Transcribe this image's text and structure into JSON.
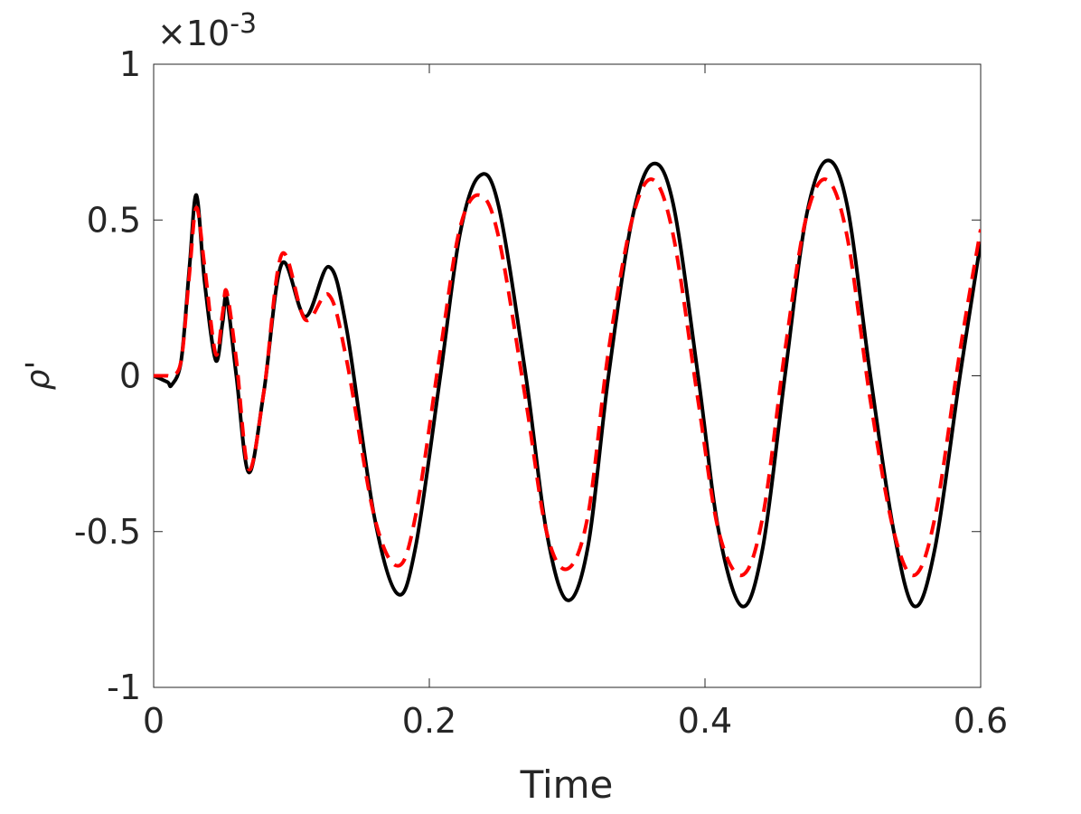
{
  "chart_data": {
    "type": "line",
    "ylabel": "ρ'",
    "xlabel": "Time",
    "y_multiplier": {
      "base": "×10",
      "exponent": "-3"
    },
    "x": [
      0,
      0.01,
      0.013,
      0.02,
      0.026,
      0.031,
      0.037,
      0.045,
      0.05,
      0.053,
      0.06,
      0.069,
      0.08,
      0.093,
      0.11,
      0.127,
      0.14,
      0.16,
      0.177,
      0.19,
      0.208,
      0.222,
      0.236,
      0.25,
      0.27,
      0.285,
      0.3,
      0.315,
      0.33,
      0.347,
      0.362,
      0.377,
      0.395,
      0.41,
      0.427,
      0.442,
      0.458,
      0.473,
      0.488,
      0.503,
      0.52,
      0.537,
      0.552,
      0.567,
      0.585,
      0.6
    ],
    "series": [
      {
        "color": "#000000",
        "style": "solid",
        "values": [
          0,
          -0.02,
          -0.03,
          0.05,
          0.35,
          0.58,
          0.3,
          0.05,
          0.17,
          0.25,
          0.0,
          -0.31,
          -0.05,
          0.36,
          0.19,
          0.35,
          0.15,
          -0.45,
          -0.7,
          -0.55,
          0.0,
          0.45,
          0.64,
          0.55,
          0.0,
          -0.5,
          -0.72,
          -0.55,
          0.0,
          0.5,
          0.68,
          0.55,
          0.0,
          -0.5,
          -0.74,
          -0.55,
          0.0,
          0.5,
          0.69,
          0.55,
          0.0,
          -0.5,
          -0.74,
          -0.55,
          0.0,
          0.43
        ]
      },
      {
        "color": "#ff0000",
        "style": "dashed",
        "values": [
          0,
          0,
          0.0,
          0.05,
          0.33,
          0.54,
          0.35,
          0.07,
          0.2,
          0.27,
          0.05,
          -0.3,
          -0.05,
          0.39,
          0.18,
          0.26,
          0.05,
          -0.45,
          -0.61,
          -0.45,
          0.08,
          0.47,
          0.58,
          0.45,
          -0.08,
          -0.5,
          -0.62,
          -0.45,
          0.08,
          0.5,
          0.63,
          0.45,
          -0.08,
          -0.5,
          -0.64,
          -0.45,
          0.08,
          0.5,
          0.63,
          0.45,
          -0.08,
          -0.5,
          -0.64,
          -0.45,
          0.08,
          0.47
        ]
      }
    ],
    "xlim": [
      0,
      0.6
    ],
    "xticks": [
      0,
      0.2,
      0.4,
      0.6
    ],
    "ylim": [
      -1,
      1
    ],
    "yticks": [
      -1,
      -0.5,
      0,
      0.5,
      1
    ],
    "grid": false,
    "box": true
  }
}
